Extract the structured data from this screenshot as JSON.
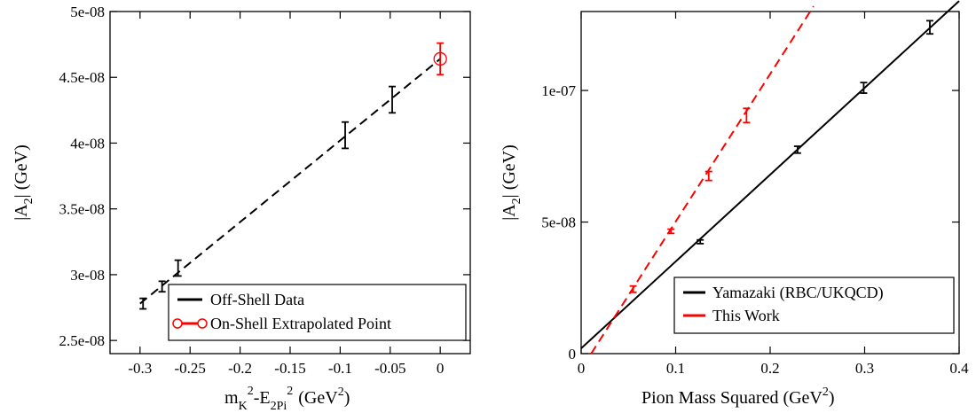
{
  "chart_data": [
    {
      "type": "scatter",
      "xlabel": "m_K^2-E_2Pi^2 (GeV^2)",
      "xlabel_parts": {
        "m": "m",
        "sub1": "K",
        "sup1": "2",
        "minus": "-E",
        "sub2": "2Pi",
        "sup2": "2",
        "unit": "(GeV",
        "unit_sup": "2",
        "close": ")"
      },
      "ylabel": "|A_2| (GeV)",
      "ylabel_parts": {
        "pre": "|A",
        "sub": "2",
        "post": "| (GeV)"
      },
      "xlim": [
        -0.33,
        0.03
      ],
      "ylim": [
        2.4e-08,
        5e-08
      ],
      "x_ticks": [
        -0.3,
        -0.25,
        -0.2,
        -0.15,
        -0.1,
        -0.05,
        0
      ],
      "x_tick_labels": [
        "-0.3",
        "-0.25",
        "-0.2",
        "-0.15",
        "-0.1",
        "-0.05",
        "0"
      ],
      "y_ticks": [
        2.5e-08,
        3e-08,
        3.5e-08,
        4e-08,
        4.5e-08,
        5e-08
      ],
      "y_tick_labels": [
        "2.5e-08",
        "3e-08",
        "3.5e-08",
        "4e-08",
        "4.5e-08",
        "5e-08"
      ],
      "grid": false,
      "legend_position": "bottom-right",
      "series": [
        {
          "name": "Off-Shell Data",
          "color": "#000000",
          "marker": "none",
          "points": [
            {
              "x": -0.297,
              "y": 2.78e-08,
              "err": 4e-10
            },
            {
              "x": -0.278,
              "y": 2.91e-08,
              "err": 4e-10
            },
            {
              "x": -0.262,
              "y": 3.05e-08,
              "err": 6e-10
            },
            {
              "x": -0.095,
              "y": 4.06e-08,
              "err": 1e-09
            },
            {
              "x": -0.048,
              "y": 4.33e-08,
              "err": 1e-09
            }
          ]
        },
        {
          "name": "On-Shell Extrapolated Point",
          "color": "#ff0000",
          "marker": "open-circle",
          "points": [
            {
              "x": 0.0,
              "y": 4.64e-08,
              "err": 1.2e-09
            }
          ]
        }
      ],
      "fit_line": {
        "style": "dashed",
        "color": "#000000",
        "x": [
          -0.3,
          0.0
        ],
        "y": [
          2.78e-08,
          4.64e-08
        ]
      }
    },
    {
      "type": "scatter",
      "xlabel": "Pion Mass Squared (GeV^2)",
      "xlabel_parts": {
        "main": "Pion Mass Squared (GeV",
        "sup": "2",
        "close": ")"
      },
      "ylabel": "|A_2| (GeV)",
      "ylabel_parts": {
        "pre": "|A",
        "sub": "2",
        "post": "| (GeV)"
      },
      "xlim": [
        0,
        0.4
      ],
      "ylim": [
        0,
        1.3e-07
      ],
      "x_ticks": [
        0,
        0.1,
        0.2,
        0.3,
        0.4
      ],
      "x_tick_labels": [
        "0",
        "0.1",
        "0.2",
        "0.3",
        "0.4"
      ],
      "y_ticks": [
        0,
        5e-08,
        1e-07
      ],
      "y_tick_labels": [
        "0",
        "5e-08",
        "1e-07"
      ],
      "grid": false,
      "legend_position": "bottom-right",
      "series": [
        {
          "name": "Yamazaki (RBC/UKQCD)",
          "color": "#000000",
          "points": [
            {
              "x": 0.126,
              "y": 4.25e-08,
              "err": 7e-10
            },
            {
              "x": 0.229,
              "y": 7.75e-08,
              "err": 1.3e-09
            },
            {
              "x": 0.299,
              "y": 1.01e-07,
              "err": 2e-09
            },
            {
              "x": 0.369,
              "y": 1.24e-07,
              "err": 2.5e-09
            }
          ]
        },
        {
          "name": "This Work",
          "color": "#ff0000",
          "points": [
            {
              "x": 0.055,
              "y": 2.45e-08,
              "err": 1.2e-09
            },
            {
              "x": 0.095,
              "y": 4.65e-08,
              "err": 8e-10
            },
            {
              "x": 0.135,
              "y": 6.75e-08,
              "err": 1.7e-09
            },
            {
              "x": 0.175,
              "y": 9.05e-08,
              "err": 2.7e-09
            }
          ]
        }
      ],
      "fit_lines": [
        {
          "series": "Yamazaki (RBC/UKQCD)",
          "style": "solid",
          "color": "#000000",
          "x": [
            0.0,
            0.4
          ],
          "y": [
            2e-09,
            1.34e-07
          ]
        },
        {
          "series": "This Work",
          "style": "dashed",
          "color": "#ff0000",
          "x": [
            0.0106,
            0.2459
          ],
          "y": [
            0.0,
            1.32e-07
          ]
        }
      ]
    }
  ]
}
